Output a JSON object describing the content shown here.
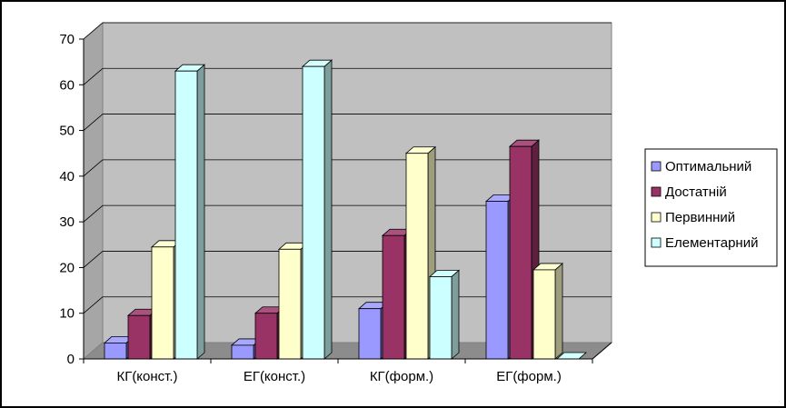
{
  "chart_data": {
    "type": "bar",
    "title": "",
    "xlabel": "",
    "ylabel": "",
    "ylim": [
      0,
      70
    ],
    "yticks": [
      0,
      10,
      20,
      30,
      40,
      50,
      60,
      70
    ],
    "grid": true,
    "three_d": true,
    "legend_position": "right",
    "categories": [
      "КГ(конст.)",
      "ЕГ(конст.)",
      "КГ(форм.)",
      "ЕГ(форм.)"
    ],
    "series": [
      {
        "name": "Оптимальний",
        "color": "#9999ff",
        "values": [
          3.5,
          3.0,
          11.0,
          34.5
        ]
      },
      {
        "name": "Достатній",
        "color": "#993366",
        "values": [
          9.5,
          10.0,
          27.0,
          46.5
        ]
      },
      {
        "name": "Первинний",
        "color": "#ffffcc",
        "values": [
          24.5,
          24.0,
          45.0,
          19.5
        ]
      },
      {
        "name": "Елементарний",
        "color": "#ccffff",
        "values": [
          63.0,
          64.0,
          18.0,
          0.0
        ]
      }
    ],
    "plot_color": "#c0c0c0"
  }
}
